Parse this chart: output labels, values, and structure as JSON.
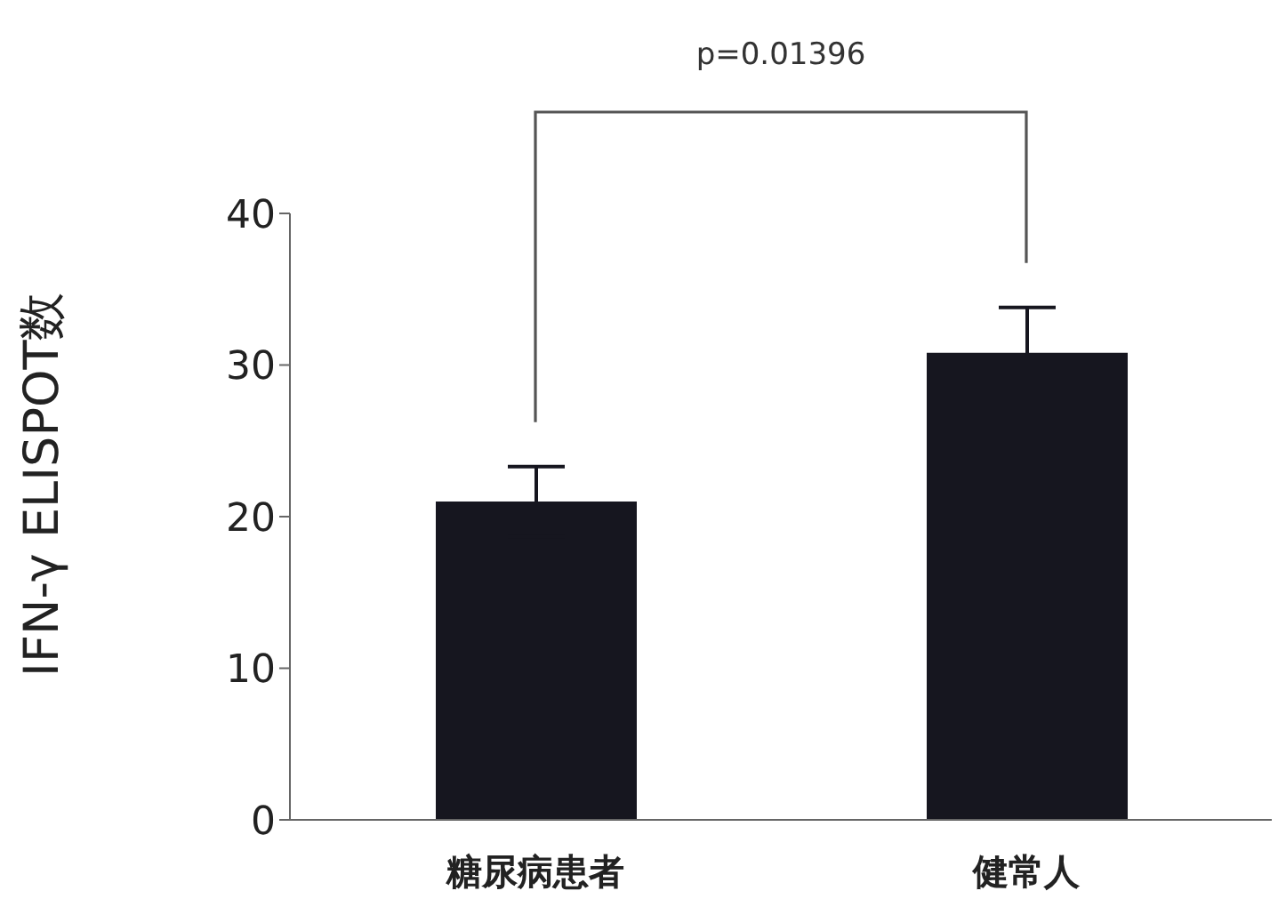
{
  "chart_data": {
    "type": "bar",
    "categories": [
      "糖尿病患者",
      "健常人"
    ],
    "values": [
      21,
      30.8
    ],
    "errors": [
      2.3,
      3
    ],
    "color": "#16161f",
    "ylabel": "IFN-γ ELISPOT数",
    "ylim": [
      0,
      40
    ],
    "yticks": [
      0,
      10,
      20,
      30,
      40
    ],
    "annotations": [
      "p=0.01396"
    ],
    "grid": false,
    "legend": false
  }
}
